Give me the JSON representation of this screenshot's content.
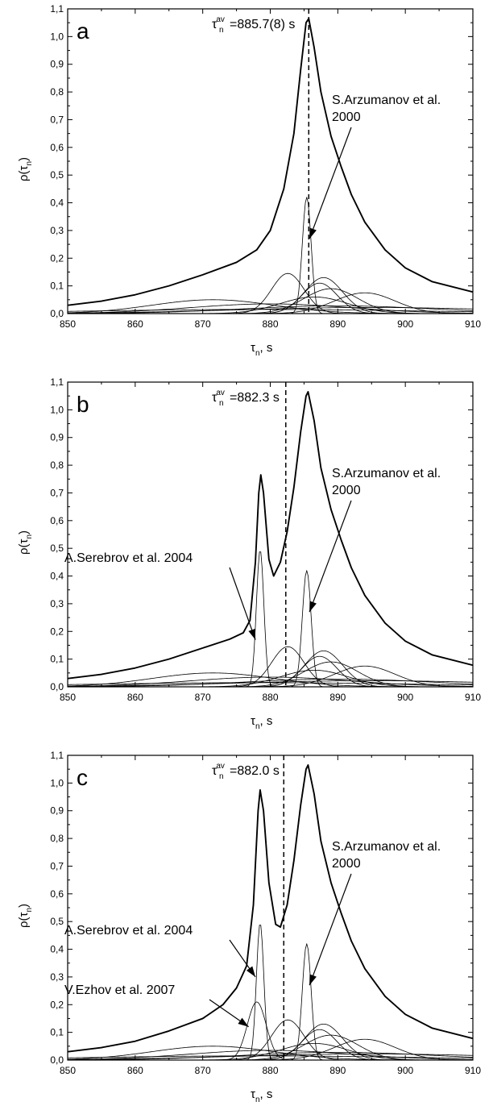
{
  "chart_data": [
    {
      "type": "line",
      "panel_label": "a",
      "xlabel": {
        "base": "τ",
        "sub": "n",
        "suffix": ", s"
      },
      "ylabel": {
        "pre": "ρ(τ",
        "sub": "n",
        "post": ")"
      },
      "xlim": [
        850,
        910
      ],
      "ylim": [
        0,
        1.1
      ],
      "xticks": [
        "850",
        "860",
        "870",
        "880",
        "890",
        "900",
        "910"
      ],
      "yticks": [
        "0,0",
        "0,1",
        "0,2",
        "0,3",
        "0,4",
        "0,5",
        "0,6",
        "0,7",
        "0,8",
        "0,9",
        "1,0",
        "1,1"
      ],
      "average": {
        "x": 885.7,
        "label_base": "τ",
        "label_sub": "n",
        "label_sup": "av",
        "label_value": "=885.7(8) s"
      },
      "annotations": [
        {
          "lines": [
            "S.Arzumanov et al.",
            "2000"
          ],
          "target": [
            885.8,
            0.27
          ]
        }
      ],
      "series": [
        {
          "role": "sum",
          "values": [
            [
              850,
              0.03
            ],
            [
              855,
              0.045
            ],
            [
              860,
              0.068
            ],
            [
              865,
              0.1
            ],
            [
              870,
              0.14
            ],
            [
              875,
              0.185
            ],
            [
              878,
              0.23
            ],
            [
              880,
              0.3
            ],
            [
              882,
              0.45
            ],
            [
              883.5,
              0.65
            ],
            [
              884.5,
              0.88
            ],
            [
              885.3,
              1.05
            ],
            [
              885.7,
              1.065
            ],
            [
              886.5,
              0.96
            ],
            [
              887.5,
              0.8
            ],
            [
              889,
              0.64
            ],
            [
              890.5,
              0.53
            ],
            [
              892,
              0.43
            ],
            [
              894,
              0.33
            ],
            [
              897,
              0.23
            ],
            [
              900,
              0.165
            ],
            [
              904,
              0.115
            ],
            [
              910,
              0.078
            ]
          ]
        },
        {
          "role": "component",
          "center": 885.4,
          "sigma": 0.65,
          "amp": 0.42
        },
        {
          "role": "component",
          "center": 882.6,
          "sigma": 2.4,
          "amp": 0.145
        },
        {
          "role": "component",
          "center": 887.9,
          "sigma": 2.8,
          "amp": 0.13
        },
        {
          "role": "component",
          "center": 887.3,
          "sigma": 2.6,
          "amp": 0.11
        },
        {
          "role": "component",
          "center": 894.0,
          "sigma": 4.5,
          "amp": 0.075
        },
        {
          "role": "component",
          "center": 889.0,
          "sigma": 4.0,
          "amp": 0.09
        },
        {
          "role": "component",
          "center": 871.5,
          "sigma": 9.0,
          "amp": 0.05
        },
        {
          "role": "component",
          "center": 886.5,
          "sigma": 5.0,
          "amp": 0.06
        },
        {
          "role": "component",
          "center": 880.0,
          "sigma": 12.0,
          "amp": 0.035
        },
        {
          "role": "component",
          "center": 890.0,
          "sigma": 14.0,
          "amp": 0.028
        },
        {
          "role": "component",
          "center": 895.0,
          "sigma": 20.0,
          "amp": 0.022
        },
        {
          "role": "component",
          "center": 878.0,
          "sigma": 25.0,
          "amp": 0.015
        }
      ]
    },
    {
      "type": "line",
      "panel_label": "b",
      "xlabel": {
        "base": "τ",
        "sub": "n",
        "suffix": ", s"
      },
      "ylabel": {
        "pre": "ρ(τ",
        "sub": "n",
        "post": ")"
      },
      "xlim": [
        850,
        910
      ],
      "ylim": [
        0,
        1.1
      ],
      "xticks": [
        "850",
        "860",
        "870",
        "880",
        "890",
        "900",
        "910"
      ],
      "yticks": [
        "0,0",
        "0,1",
        "0,2",
        "0,3",
        "0,4",
        "0,5",
        "0,6",
        "0,7",
        "0,8",
        "0,9",
        "1,0",
        "1,1"
      ],
      "average": {
        "x": 882.3,
        "label_base": "τ",
        "label_sub": "n",
        "label_sup": "av",
        "label_value": "=882.3 s"
      },
      "annotations": [
        {
          "lines": [
            "S.Arzumanov et al.",
            "2000"
          ],
          "target": [
            885.8,
            0.27
          ]
        },
        {
          "lines": [
            "A.Serebrov et al. 2004"
          ],
          "target": [
            877.8,
            0.17
          ]
        }
      ],
      "series": [
        {
          "role": "sum",
          "values": [
            [
              850,
              0.03
            ],
            [
              855,
              0.045
            ],
            [
              860,
              0.068
            ],
            [
              865,
              0.1
            ],
            [
              870,
              0.14
            ],
            [
              874,
              0.172
            ],
            [
              876,
              0.195
            ],
            [
              877,
              0.24
            ],
            [
              877.8,
              0.45
            ],
            [
              878.3,
              0.7
            ],
            [
              878.6,
              0.765
            ],
            [
              879.0,
              0.7
            ],
            [
              879.8,
              0.46
            ],
            [
              880.5,
              0.4
            ],
            [
              881.5,
              0.45
            ],
            [
              882.5,
              0.56
            ],
            [
              883.5,
              0.72
            ],
            [
              884.5,
              0.92
            ],
            [
              885.3,
              1.05
            ],
            [
              885.6,
              1.065
            ],
            [
              886.5,
              0.96
            ],
            [
              887.5,
              0.79
            ],
            [
              889,
              0.64
            ],
            [
              890.5,
              0.53
            ],
            [
              892,
              0.43
            ],
            [
              894,
              0.33
            ],
            [
              897,
              0.23
            ],
            [
              900,
              0.165
            ],
            [
              904,
              0.115
            ],
            [
              910,
              0.078
            ]
          ]
        },
        {
          "role": "component",
          "center": 878.5,
          "sigma": 0.55,
          "amp": 0.495
        },
        {
          "role": "component",
          "center": 885.4,
          "sigma": 0.65,
          "amp": 0.42
        },
        {
          "role": "component",
          "center": 882.6,
          "sigma": 2.4,
          "amp": 0.145
        },
        {
          "role": "component",
          "center": 887.9,
          "sigma": 2.8,
          "amp": 0.13
        },
        {
          "role": "component",
          "center": 887.3,
          "sigma": 2.6,
          "amp": 0.11
        },
        {
          "role": "component",
          "center": 894.0,
          "sigma": 4.5,
          "amp": 0.075
        },
        {
          "role": "component",
          "center": 889.0,
          "sigma": 4.0,
          "amp": 0.09
        },
        {
          "role": "component",
          "center": 871.5,
          "sigma": 9.0,
          "amp": 0.05
        },
        {
          "role": "component",
          "center": 886.5,
          "sigma": 5.0,
          "amp": 0.06
        },
        {
          "role": "component",
          "center": 880.0,
          "sigma": 12.0,
          "amp": 0.035
        },
        {
          "role": "component",
          "center": 890.0,
          "sigma": 14.0,
          "amp": 0.028
        },
        {
          "role": "component",
          "center": 895.0,
          "sigma": 20.0,
          "amp": 0.022
        },
        {
          "role": "component",
          "center": 878.0,
          "sigma": 25.0,
          "amp": 0.015
        }
      ]
    },
    {
      "type": "line",
      "panel_label": "c",
      "xlabel": {
        "base": "τ",
        "sub": "n",
        "suffix": ", s"
      },
      "ylabel": {
        "pre": "ρ(τ",
        "sub": "n",
        "post": ")"
      },
      "xlim": [
        850,
        910
      ],
      "ylim": [
        0,
        1.1
      ],
      "xticks": [
        "850",
        "860",
        "870",
        "880",
        "890",
        "900",
        "910"
      ],
      "yticks": [
        "0,0",
        "0,1",
        "0,2",
        "0,3",
        "0,4",
        "0,5",
        "0,6",
        "0,7",
        "0,8",
        "0,9",
        "1,0",
        "1,1"
      ],
      "average": {
        "x": 882.0,
        "label_base": "τ",
        "label_sub": "n",
        "label_sup": "av",
        "label_value": "=882.0 s"
      },
      "annotations": [
        {
          "lines": [
            "S.Arzumanov et al.",
            "2000"
          ],
          "target": [
            885.8,
            0.27
          ]
        },
        {
          "lines": [
            "A.Serebrov et al. 2004"
          ],
          "target": [
            877.8,
            0.3
          ]
        },
        {
          "lines": [
            "V.Ezhov et al. 2007"
          ],
          "target": [
            876.8,
            0.12
          ]
        }
      ],
      "series": [
        {
          "role": "sum",
          "values": [
            [
              850,
              0.03
            ],
            [
              855,
              0.045
            ],
            [
              860,
              0.068
            ],
            [
              865,
              0.105
            ],
            [
              870,
              0.15
            ],
            [
              873,
              0.2
            ],
            [
              875,
              0.26
            ],
            [
              876.5,
              0.34
            ],
            [
              877.5,
              0.56
            ],
            [
              878.2,
              0.9
            ],
            [
              878.5,
              0.975
            ],
            [
              879.0,
              0.9
            ],
            [
              879.8,
              0.64
            ],
            [
              880.8,
              0.49
            ],
            [
              881.5,
              0.48
            ],
            [
              882.5,
              0.56
            ],
            [
              883.5,
              0.72
            ],
            [
              884.5,
              0.92
            ],
            [
              885.3,
              1.05
            ],
            [
              885.6,
              1.065
            ],
            [
              886.5,
              0.96
            ],
            [
              887.5,
              0.79
            ],
            [
              889,
              0.64
            ],
            [
              890.5,
              0.53
            ],
            [
              892,
              0.43
            ],
            [
              894,
              0.33
            ],
            [
              897,
              0.23
            ],
            [
              900,
              0.165
            ],
            [
              904,
              0.115
            ],
            [
              910,
              0.078
            ]
          ]
        },
        {
          "role": "component",
          "center": 878.5,
          "sigma": 0.55,
          "amp": 0.495
        },
        {
          "role": "component",
          "center": 878.0,
          "sigma": 1.4,
          "amp": 0.21
        },
        {
          "role": "component",
          "center": 885.4,
          "sigma": 0.65,
          "amp": 0.42
        },
        {
          "role": "component",
          "center": 882.6,
          "sigma": 2.4,
          "amp": 0.145
        },
        {
          "role": "component",
          "center": 887.9,
          "sigma": 2.8,
          "amp": 0.13
        },
        {
          "role": "component",
          "center": 887.3,
          "sigma": 2.6,
          "amp": 0.11
        },
        {
          "role": "component",
          "center": 894.0,
          "sigma": 4.5,
          "amp": 0.075
        },
        {
          "role": "component",
          "center": 889.0,
          "sigma": 4.0,
          "amp": 0.09
        },
        {
          "role": "component",
          "center": 871.5,
          "sigma": 9.0,
          "amp": 0.05
        },
        {
          "role": "component",
          "center": 886.5,
          "sigma": 5.0,
          "amp": 0.06
        },
        {
          "role": "component",
          "center": 880.0,
          "sigma": 12.0,
          "amp": 0.035
        },
        {
          "role": "component",
          "center": 890.0,
          "sigma": 14.0,
          "amp": 0.028
        },
        {
          "role": "component",
          "center": 895.0,
          "sigma": 20.0,
          "amp": 0.022
        },
        {
          "role": "component",
          "center": 878.0,
          "sigma": 25.0,
          "amp": 0.015
        }
      ]
    }
  ]
}
